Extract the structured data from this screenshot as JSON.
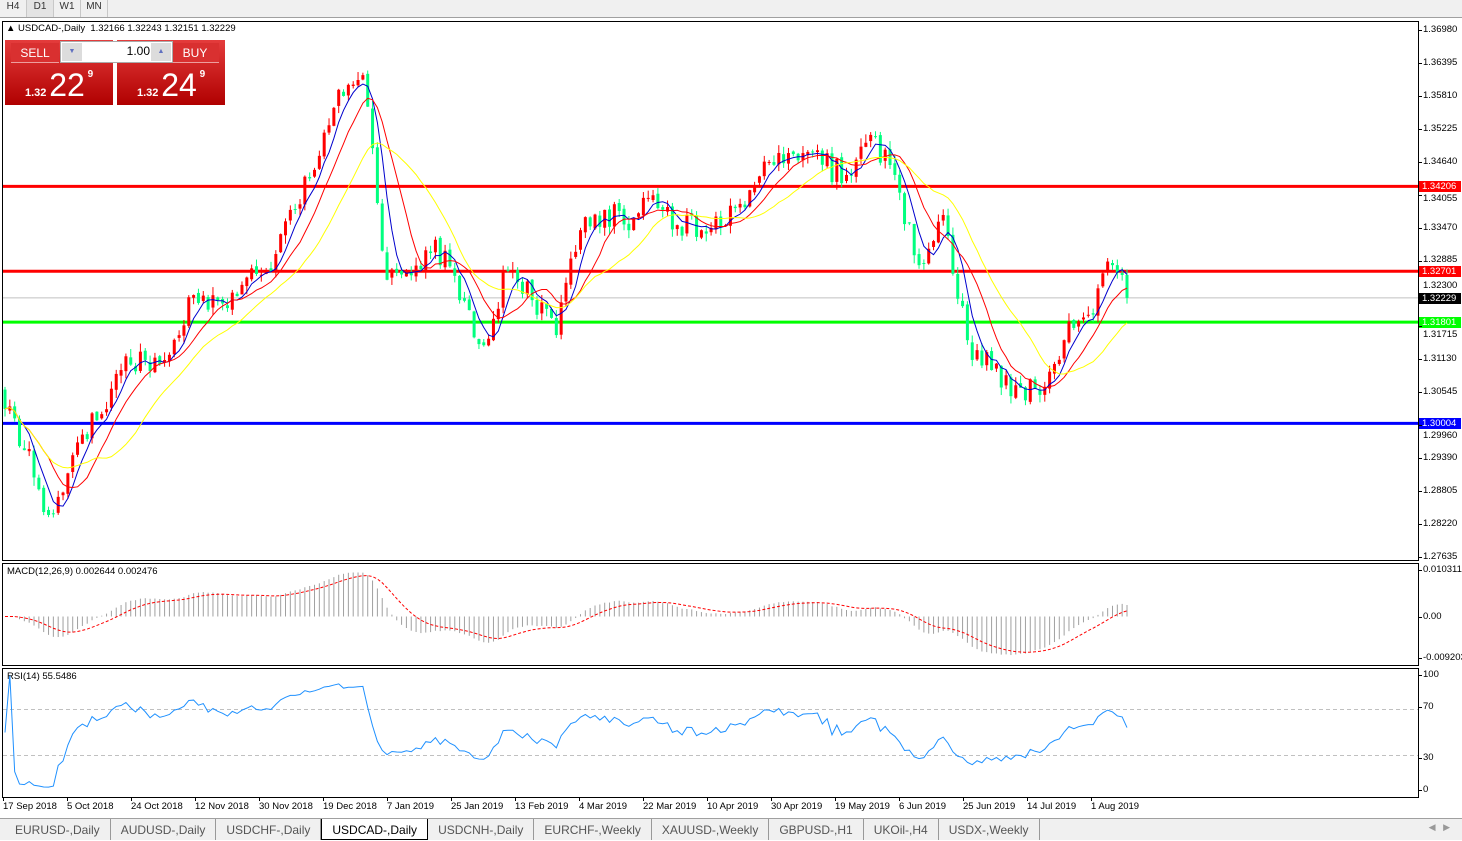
{
  "timeframes": [
    "H4",
    "D1",
    "W1",
    "MN"
  ],
  "active_timeframe": "D1",
  "chart": {
    "title": "USDCAD-,Daily",
    "ohlc": "1.32166 1.32243 1.32151 1.32229"
  },
  "trade_panel": {
    "sell_label": "SELL",
    "buy_label": "BUY",
    "lot": "1.00",
    "sell_price": {
      "prefix": "1.32",
      "big": "22",
      "pip": "9"
    },
    "buy_price": {
      "prefix": "1.32",
      "big": "24",
      "pip": "9"
    }
  },
  "colors": {
    "bull": "#ff0000",
    "bear": "#00ff7f",
    "ma_fast": "#0000cd",
    "ma_mid": "#ff0000",
    "ma_slow": "#ffff00",
    "rsi": "#1e90ff"
  },
  "chart_data": {
    "type": "candlestick",
    "start_date": "17 Sep 2018",
    "start_open": 1.306,
    "weekly_closes": [
      1.2953,
      1.2838,
      1.2944,
      1.3006,
      1.3095,
      1.3113,
      1.3122,
      1.3228,
      1.3219,
      1.3246,
      1.3272,
      1.3379,
      1.345,
      1.3592,
      1.3618,
      1.3255,
      1.3263,
      1.3326,
      1.3219,
      1.3139,
      1.3272,
      1.3219,
      1.3157,
      1.3343,
      1.3379,
      1.3343,
      1.3405,
      1.3352,
      1.3343,
      1.3352,
      1.3414,
      1.3459,
      1.3467,
      1.3459,
      1.3441,
      1.3512,
      1.3441,
      1.3281,
      1.337,
      1.3148,
      1.3095,
      1.3068,
      1.3051,
      1.3148,
      1.3193,
      1.3281
    ],
    "last_close": 1.32229,
    "ylim": [
      1.27635,
      1.3698
    ],
    "price_ticks": [
      "1.36980",
      "1.36395",
      "1.35810",
      "1.35225",
      "1.34640",
      "1.34055",
      "1.33470",
      "1.32885",
      "1.32300",
      "1.31715",
      "1.31130",
      "1.30545",
      "1.29960",
      "1.29390",
      "1.28805",
      "1.28220",
      "1.27635"
    ],
    "x_ticks": [
      "17 Sep 2018",
      "5 Oct 2018",
      "24 Oct 2018",
      "12 Nov 2018",
      "30 Nov 2018",
      "19 Dec 2018",
      "7 Jan 2019",
      "25 Jan 2019",
      "13 Feb 2019",
      "4 Mar 2019",
      "22 Mar 2019",
      "10 Apr 2019",
      "30 Apr 2019",
      "19 May 2019",
      "6 Jun 2019",
      "25 Jun 2019",
      "14 Jul 2019",
      "1 Aug 2019"
    ],
    "levels": [
      {
        "price": 1.34206,
        "label": "1.34206",
        "color": "#ff0000"
      },
      {
        "price": 1.32701,
        "label": "1.32701",
        "color": "#ff0000"
      },
      {
        "price": 1.31801,
        "label": "1.31801",
        "color": "#00ff00"
      },
      {
        "price": 1.30004,
        "label": "1.30004",
        "color": "#0000ff"
      }
    ],
    "bid": {
      "price": 1.32229,
      "label": "1.32229"
    }
  },
  "macd": {
    "label": "MACD(12,26,9) 0.002644 0.002476",
    "ticks": [
      "0.010311",
      "0.00",
      "-0.009203"
    ],
    "range": [
      -0.009203,
      0.010311
    ]
  },
  "rsi": {
    "label": "RSI(14) 55.5486",
    "ticks": [
      "100",
      "70",
      "30",
      "0"
    ]
  },
  "tabs": [
    "EURUSD-,Daily",
    "AUDUSD-,Daily",
    "USDCHF-,Daily",
    "USDCAD-,Daily",
    "USDCNH-,Daily",
    "EURCHF-,Weekly",
    "XAUUSD-,Weekly",
    "GBPUSD-,H1",
    "UKOil-,H4",
    "USDX-,Weekly"
  ],
  "active_tab": "USDCAD-,Daily"
}
